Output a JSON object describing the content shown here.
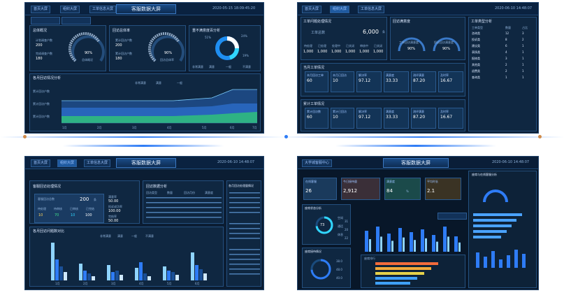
{
  "panel1": {
    "title": "客服数据大屏",
    "time": "2020-05-15 18:09:45:20",
    "tabs": [
      "首页大屏",
      "组织大屏",
      "工单信息大屏"
    ],
    "section1": {
      "title": "总体概况",
      "lbl1": "计划调查户数",
      "val1": "200",
      "lbl2": "完成调查户数",
      "val2": "180",
      "gauge_value": "90%",
      "gauge_label": "总体概况"
    },
    "section2": {
      "title": "回访总体率",
      "lbl1": "累计回访户数",
      "val1": "200",
      "lbl2": "累计回访户数",
      "val2": "180",
      "gauge_value": "90%",
      "gauge_label": "回访总体率"
    },
    "section3": {
      "title": "重不满意度百分析",
      "p1": "51%",
      "p2": "24%",
      "p3": "19%",
      "legend": [
        "非常满意",
        "满意",
        "一般",
        "不满意"
      ]
    },
    "chart_title": "各月回访情况分析",
    "chart_legend": [
      "非常满意",
      "满意",
      "一般",
      "不满意"
    ],
    "chart_y": [
      "累计回访户数",
      "累计回访户数",
      "累计回访户数"
    ],
    "chart_yvals": [
      "400",
      "300",
      "200",
      "180"
    ],
    "chart_x": [
      "1月",
      "2月",
      "3月",
      "4月",
      "5月",
      "6月",
      "7月"
    ]
  },
  "panel2": {
    "time": "2020-06-10 14:48:07",
    "tabs": [
      "首页大屏",
      "组织大屏",
      "工单信息大屏"
    ],
    "sec1": {
      "title": "工单问题处理情况",
      "lbl_total": "工单总数",
      "total": "6,000",
      "unit": "条",
      "cols": [
        "待处理",
        "已处理",
        "处理中",
        "已关闭",
        "审核中",
        "已关闭"
      ],
      "vals": [
        "1,000",
        "1,000",
        "1,000",
        "1,000",
        "1,000",
        "1,000"
      ]
    },
    "sec2": {
      "title": "回访满意度",
      "g1_label": "工单回访满意度",
      "g1_val": "90%",
      "g2_label": "投诉回访满意度",
      "g2_val": "90%"
    },
    "sec3": {
      "title": "当月工单情况",
      "cols": [
        "本月回访工单",
        "本月已回访",
        "解决率",
        "满意度",
        "测评满意",
        "及时率"
      ],
      "vals": [
        "60",
        "10",
        "97.12",
        "33.33",
        "87.20",
        "16.67"
      ],
      "sub": [
        "同上月",
        "同上月",
        "同上月",
        "同上月",
        "同上月",
        "同上月"
      ]
    },
    "sec4": {
      "title": "累计工单情况",
      "cols": [
        "累计回访数",
        "累计已回访",
        "解决率",
        "满意度",
        "测评满意",
        "及时率"
      ],
      "vals": [
        "60",
        "10",
        "97.12",
        "33.33",
        "87.20",
        "16.67"
      ]
    },
    "table_title": "工单类型分析",
    "table_head": [
      "工单类型",
      "数量",
      "占比"
    ],
    "table_rows": [
      [
        "咨询类",
        "12",
        "3"
      ],
      [
        "投诉类",
        "8",
        "2"
      ],
      [
        "建议类",
        "6",
        "1"
      ],
      [
        "表扬类",
        "4",
        "1"
      ],
      [
        "报修类",
        "3",
        "1"
      ],
      [
        "其他类",
        "2",
        "1"
      ],
      [
        "退费类",
        "2",
        "1"
      ],
      [
        "查询类",
        "1",
        "1"
      ]
    ]
  },
  "panel3": {
    "title": "客服数据大屏",
    "time": "2020-06-10 14:48:07",
    "tabs": [
      "首页大屏",
      "组织大屏",
      "工单信息大屏"
    ],
    "sec1": {
      "title": "客服回访处理情况",
      "card_title": "客服回访总数",
      "card_val": "200",
      "unit": "条",
      "stats": [
        "待处理",
        "待审核",
        "已审核",
        "已完结"
      ],
      "stats_vals": [
        "10",
        "70",
        "10",
        "100"
      ],
      "r1_lbl": "满意率",
      "r1": "50.00",
      "r2_lbl": "投诉成功率",
      "r2": "100.00",
      "r3_lbl": "完结率",
      "r3": "50.00"
    },
    "sec2": {
      "title": "回访数据分析",
      "head": [
        "回访类型",
        "数量",
        "回访月份",
        "满意度"
      ]
    },
    "sec3": {
      "title": "各月回访处理量情况"
    },
    "chart_title": "各月回访问题数对比",
    "chart_legend": [
      "非常满意",
      "满意",
      "一般",
      "不满意"
    ],
    "chart_x": [
      "1月",
      "2月",
      "3月",
      "4月",
      "5月",
      "6月"
    ]
  },
  "panel4": {
    "title": "客服数据大屏",
    "time": "2020-06-10 14:48:07",
    "tab": "大学城客服中心",
    "right_title": "座席与在线客服分析",
    "kpis": [
      {
        "label": "在线客服",
        "value": "26"
      },
      {
        "label": "今日接待量",
        "value": "2,912"
      },
      {
        "label": "满意度",
        "value": "84",
        "unit": "%"
      },
      {
        "label": "平均时长",
        "value": "2.1"
      }
    ],
    "left1_title": "座席状态分析",
    "gauge1": "73",
    "gauge_sub": [
      "空闲",
      "通话",
      "休息"
    ],
    "gauge_vals": [
      "31",
      "20",
      "22"
    ],
    "left2_title": "座席接待情况",
    "ring_stats": [
      "38.0",
      "48.0",
      "40.0"
    ],
    "hbar_title": "座席排行",
    "rank_rows": [
      "1",
      "2",
      "3",
      "4",
      "5"
    ]
  },
  "colors": {
    "panel_bg": "#0b1d33",
    "border": "#22456d",
    "accent": "#2e7cf6",
    "area1": "#1e5aa8",
    "area2": "#3fe08a",
    "bar1": "#8fd4ff",
    "bar2": "#2e7cf6",
    "bar3": "#1a4f96"
  }
}
